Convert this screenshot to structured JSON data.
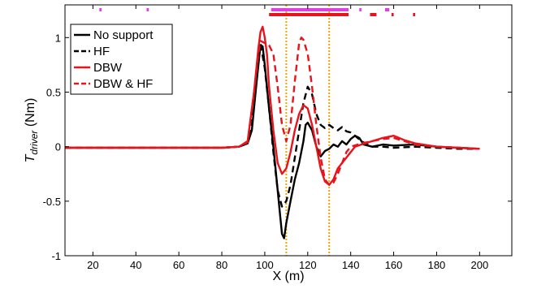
{
  "chart_data": {
    "type": "line",
    "xlabel": "X (m)",
    "ylabel_main": "T",
    "ylabel_sub": "driver",
    "ylabel_unit": " (Nm)",
    "xlim": [
      7,
      215
    ],
    "ylim": [
      -1,
      1.3
    ],
    "xticks": [
      {
        "value": 20,
        "label": "20"
      },
      {
        "value": 40,
        "label": "40"
      },
      {
        "value": 60,
        "label": "60"
      },
      {
        "value": 80,
        "label": "80"
      },
      {
        "value": 100,
        "label": "100"
      },
      {
        "value": 120,
        "label": "120"
      },
      {
        "value": 140,
        "label": "140"
      },
      {
        "value": 160,
        "label": "160"
      },
      {
        "value": 180,
        "label": "180"
      },
      {
        "value": 200,
        "label": "200"
      }
    ],
    "yticks": [
      {
        "value": -1,
        "label": "-1"
      },
      {
        "value": -0.5,
        "label": "-0.5"
      },
      {
        "value": 0,
        "label": "0"
      },
      {
        "value": 0.5,
        "label": "0.5"
      },
      {
        "value": 1,
        "label": "1"
      }
    ],
    "vlines": [
      {
        "x": 110,
        "color": "#f5a300"
      },
      {
        "x": 130,
        "color": "#f5a300"
      }
    ],
    "legend": {
      "placement": "top-left"
    },
    "series": [
      {
        "name": "No support",
        "color": "#000000",
        "dash": "solid",
        "points": [
          [
            7,
            -0.01
          ],
          [
            20,
            -0.01
          ],
          [
            40,
            -0.01
          ],
          [
            60,
            -0.01
          ],
          [
            80,
            -0.01
          ],
          [
            88,
            0
          ],
          [
            92,
            0.03
          ],
          [
            94,
            0.15
          ],
          [
            96,
            0.55
          ],
          [
            98,
            0.93
          ],
          [
            99,
            0.92
          ],
          [
            100,
            0.75
          ],
          [
            102,
            0.35
          ],
          [
            104,
            0
          ],
          [
            106,
            -0.4
          ],
          [
            107,
            -0.6
          ],
          [
            108,
            -0.8
          ],
          [
            109,
            -0.84
          ],
          [
            110,
            -0.7
          ],
          [
            112,
            -0.5
          ],
          [
            114,
            -0.3
          ],
          [
            116,
            -0.15
          ],
          [
            118,
            0.05
          ],
          [
            119,
            0.2
          ],
          [
            120,
            0.22
          ],
          [
            122,
            0.15
          ],
          [
            124,
            0
          ],
          [
            126,
            -0.09
          ],
          [
            128,
            -0.04
          ],
          [
            130,
            -0.02
          ],
          [
            132,
            0.02
          ],
          [
            134,
            0
          ],
          [
            136,
            0.05
          ],
          [
            138,
            0.02
          ],
          [
            140,
            0.07
          ],
          [
            142,
            0.1
          ],
          [
            144,
            0.08
          ],
          [
            146,
            0.02
          ],
          [
            150,
            0
          ],
          [
            155,
            0.02
          ],
          [
            160,
            0.01
          ],
          [
            170,
            0.02
          ],
          [
            180,
            0
          ],
          [
            190,
            -0.01
          ],
          [
            200,
            -0.02
          ]
        ]
      },
      {
        "name": "HF",
        "color": "#000000",
        "dash": "dashed",
        "points": [
          [
            7,
            -0.01
          ],
          [
            20,
            -0.01
          ],
          [
            40,
            -0.01
          ],
          [
            60,
            -0.01
          ],
          [
            80,
            -0.01
          ],
          [
            88,
            0
          ],
          [
            92,
            0.04
          ],
          [
            94,
            0.2
          ],
          [
            96,
            0.65
          ],
          [
            98,
            0.95
          ],
          [
            100,
            0.72
          ],
          [
            102,
            0.35
          ],
          [
            104,
            -0.05
          ],
          [
            106,
            -0.4
          ],
          [
            108,
            -0.55
          ],
          [
            110,
            -0.5
          ],
          [
            112,
            -0.35
          ],
          [
            114,
            -0.1
          ],
          [
            116,
            0.15
          ],
          [
            118,
            0.4
          ],
          [
            120,
            0.55
          ],
          [
            122,
            0.48
          ],
          [
            124,
            0.3
          ],
          [
            126,
            0.2
          ],
          [
            128,
            0.17
          ],
          [
            130,
            0.2
          ],
          [
            132,
            0.17
          ],
          [
            134,
            0.15
          ],
          [
            136,
            0.18
          ],
          [
            138,
            0.14
          ],
          [
            140,
            0.13
          ],
          [
            142,
            0.1
          ],
          [
            145,
            0.05
          ],
          [
            150,
            0
          ],
          [
            155,
            0
          ],
          [
            160,
            -0.01
          ],
          [
            170,
            0
          ],
          [
            180,
            -0.01
          ],
          [
            190,
            -0.02
          ],
          [
            200,
            -0.02
          ]
        ]
      },
      {
        "name": "DBW",
        "color": "#e8141c",
        "dash": "solid",
        "points": [
          [
            7,
            -0.01
          ],
          [
            20,
            -0.01
          ],
          [
            40,
            -0.01
          ],
          [
            60,
            -0.01
          ],
          [
            80,
            -0.01
          ],
          [
            88,
            0
          ],
          [
            92,
            0.05
          ],
          [
            95,
            0.5
          ],
          [
            97,
            0.9
          ],
          [
            98,
            1.05
          ],
          [
            99,
            1.1
          ],
          [
            100,
            1.0
          ],
          [
            101,
            0.85
          ],
          [
            102,
            0.55
          ],
          [
            104,
            0.15
          ],
          [
            106,
            -0.15
          ],
          [
            108,
            -0.25
          ],
          [
            110,
            -0.2
          ],
          [
            112,
            -0.05
          ],
          [
            114,
            0.15
          ],
          [
            116,
            0.3
          ],
          [
            118,
            0.38
          ],
          [
            120,
            0.35
          ],
          [
            122,
            0.2
          ],
          [
            124,
            0
          ],
          [
            126,
            -0.2
          ],
          [
            128,
            -0.32
          ],
          [
            130,
            -0.35
          ],
          [
            132,
            -0.3
          ],
          [
            134,
            -0.2
          ],
          [
            136,
            -0.15
          ],
          [
            138,
            -0.1
          ],
          [
            140,
            -0.05
          ],
          [
            142,
            0
          ],
          [
            145,
            0.02
          ],
          [
            150,
            0.05
          ],
          [
            155,
            0.08
          ],
          [
            160,
            0.1
          ],
          [
            165,
            0.06
          ],
          [
            170,
            0.03
          ],
          [
            180,
            0
          ],
          [
            190,
            -0.01
          ],
          [
            200,
            -0.02
          ]
        ]
      },
      {
        "name": "DBW & HF",
        "color": "#e8141c",
        "dash": "dashed",
        "points": [
          [
            7,
            -0.01
          ],
          [
            20,
            -0.01
          ],
          [
            40,
            -0.01
          ],
          [
            60,
            -0.01
          ],
          [
            80,
            -0.01
          ],
          [
            88,
            0
          ],
          [
            92,
            0.04
          ],
          [
            95,
            0.5
          ],
          [
            97,
            0.85
          ],
          [
            98,
            0.97
          ],
          [
            100,
            0.95
          ],
          [
            102,
            0.93
          ],
          [
            104,
            0.85
          ],
          [
            106,
            0.55
          ],
          [
            108,
            0.2
          ],
          [
            110,
            0.05
          ],
          [
            112,
            0.2
          ],
          [
            114,
            0.6
          ],
          [
            116,
            0.95
          ],
          [
            117,
            1.0
          ],
          [
            118,
            0.98
          ],
          [
            120,
            0.85
          ],
          [
            122,
            0.55
          ],
          [
            124,
            0.2
          ],
          [
            126,
            -0.1
          ],
          [
            128,
            -0.3
          ],
          [
            130,
            -0.35
          ],
          [
            132,
            -0.33
          ],
          [
            134,
            -0.25
          ],
          [
            136,
            -0.15
          ],
          [
            138,
            -0.05
          ],
          [
            140,
            0
          ],
          [
            145,
            0.03
          ],
          [
            150,
            0.05
          ],
          [
            155,
            0.07
          ],
          [
            160,
            0.08
          ],
          [
            165,
            0.05
          ],
          [
            170,
            0.02
          ],
          [
            180,
            0
          ],
          [
            190,
            -0.01
          ],
          [
            200,
            -0.02
          ]
        ]
      }
    ],
    "markers": [
      {
        "name": "No support",
        "row": 0,
        "color": "#e040e0",
        "segments": [
          [
            23,
            24
          ],
          [
            45,
            46
          ]
        ]
      },
      {
        "name": "HF",
        "row": 0,
        "color": "#e040e0",
        "segments": [
          [
            103,
            139
          ],
          [
            144,
            145
          ],
          [
            156,
            158
          ]
        ]
      },
      {
        "name": "DBW",
        "row": 1,
        "color": "#e8141c",
        "segments": [
          [
            102,
            139
          ],
          [
            149,
            152
          ],
          [
            159,
            160
          ],
          [
            169,
            170
          ]
        ]
      }
    ]
  }
}
